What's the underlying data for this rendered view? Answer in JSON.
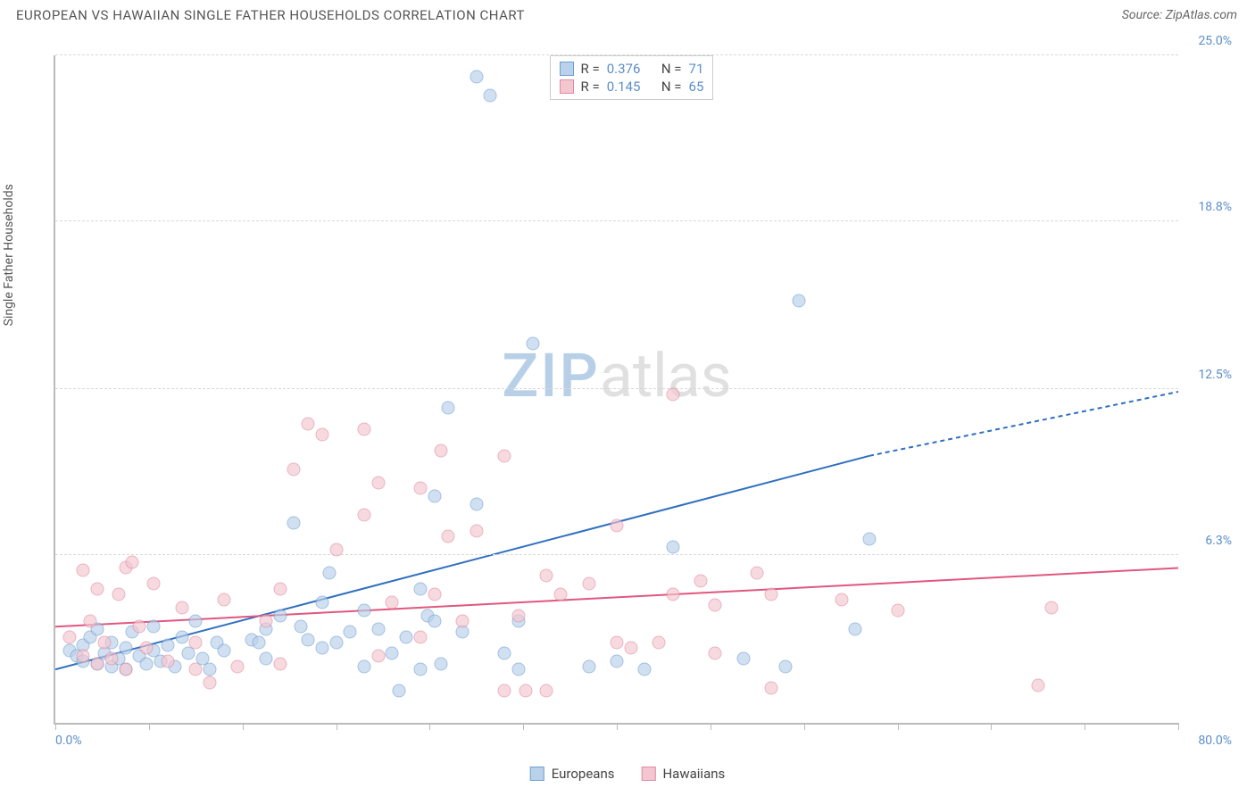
{
  "title": "EUROPEAN VS HAWAIIAN SINGLE FATHER HOUSEHOLDS CORRELATION CHART",
  "source_label": "Source:",
  "source_name": "ZipAtlas.com",
  "ylabel": "Single Father Households",
  "watermark_a": "ZIP",
  "watermark_b": "atlas",
  "chart": {
    "type": "scatter",
    "xlim": [
      0,
      80
    ],
    "ylim": [
      0,
      25
    ],
    "x_min_label": "0.0%",
    "x_max_label": "80.0%",
    "y_ticks": [
      6.3,
      12.5,
      18.8,
      25.0
    ],
    "y_tick_labels": [
      "6.3%",
      "12.5%",
      "18.8%",
      "25.0%"
    ],
    "x_tick_positions": [
      0,
      6.67,
      13.33,
      20,
      26.67,
      33.33,
      40,
      46.67,
      53.33,
      60,
      66.67,
      73.33,
      80
    ],
    "grid_color": "#d8d8d8",
    "axis_color": "#bbbbbb",
    "background_color": "#ffffff",
    "tick_label_color": "#5b8ecb",
    "series": [
      {
        "name": "Europeans",
        "fill": "#b9d1ea",
        "stroke": "#6f9fd2",
        "line_color": "#2f6fbf",
        "r": 0.376,
        "n": 71,
        "trend": {
          "x1": 0,
          "y1": 2.0,
          "x2_solid": 58,
          "y2_solid": 10.0,
          "x2_dash": 80,
          "y2_dash": 12.4
        },
        "points": [
          [
            1,
            2.7
          ],
          [
            1.5,
            2.5
          ],
          [
            2,
            2.9
          ],
          [
            2,
            2.3
          ],
          [
            2.5,
            3.2
          ],
          [
            3,
            2.2
          ],
          [
            3,
            3.5
          ],
          [
            3.5,
            2.6
          ],
          [
            4,
            2.1
          ],
          [
            4,
            3.0
          ],
          [
            4.5,
            2.4
          ],
          [
            5,
            2.8
          ],
          [
            5,
            2.0
          ],
          [
            5.5,
            3.4
          ],
          [
            6,
            2.5
          ],
          [
            6.5,
            2.2
          ],
          [
            7,
            2.7
          ],
          [
            7,
            3.6
          ],
          [
            7.5,
            2.3
          ],
          [
            8,
            2.9
          ],
          [
            8.5,
            2.1
          ],
          [
            9,
            3.2
          ],
          [
            9.5,
            2.6
          ],
          [
            10,
            3.8
          ],
          [
            10.5,
            2.4
          ],
          [
            11,
            2.0
          ],
          [
            11.5,
            3.0
          ],
          [
            12,
            2.7
          ],
          [
            14,
            3.1
          ],
          [
            14.5,
            3.0
          ],
          [
            15,
            3.5
          ],
          [
            15,
            2.4
          ],
          [
            16,
            4.0
          ],
          [
            17,
            7.5
          ],
          [
            17.5,
            3.6
          ],
          [
            18,
            3.1
          ],
          [
            19,
            2.8
          ],
          [
            19,
            4.5
          ],
          [
            19.5,
            5.6
          ],
          [
            20,
            3.0
          ],
          [
            21,
            3.4
          ],
          [
            22,
            2.1
          ],
          [
            22,
            4.2
          ],
          [
            23,
            3.5
          ],
          [
            24,
            2.6
          ],
          [
            24.5,
            1.2
          ],
          [
            25,
            3.2
          ],
          [
            26,
            2.0
          ],
          [
            26,
            5.0
          ],
          [
            26.5,
            4.0
          ],
          [
            27,
            3.8
          ],
          [
            27,
            8.5
          ],
          [
            27.5,
            2.2
          ],
          [
            28,
            11.8
          ],
          [
            29,
            3.4
          ],
          [
            30,
            8.2
          ],
          [
            30,
            24.2
          ],
          [
            31,
            23.5
          ],
          [
            32,
            2.6
          ],
          [
            33,
            2.0
          ],
          [
            33,
            3.8
          ],
          [
            34,
            14.2
          ],
          [
            38,
            2.1
          ],
          [
            40,
            2.3
          ],
          [
            42,
            2.0
          ],
          [
            44,
            6.6
          ],
          [
            49,
            2.4
          ],
          [
            52,
            2.1
          ],
          [
            53,
            15.8
          ],
          [
            57,
            3.5
          ],
          [
            58,
            6.9
          ]
        ]
      },
      {
        "name": "Hawaiians",
        "fill": "#f4c6d0",
        "stroke": "#df8ba2",
        "line_color": "#e0577f",
        "r": 0.145,
        "n": 65,
        "trend": {
          "x1": 0,
          "y1": 3.6,
          "x2_solid": 80,
          "y2_solid": 5.8,
          "x2_dash": 80,
          "y2_dash": 5.8
        },
        "points": [
          [
            1,
            3.2
          ],
          [
            2,
            5.7
          ],
          [
            2,
            2.5
          ],
          [
            2.5,
            3.8
          ],
          [
            3,
            2.2
          ],
          [
            3,
            5.0
          ],
          [
            3.5,
            3.0
          ],
          [
            4,
            2.4
          ],
          [
            4.5,
            4.8
          ],
          [
            5,
            5.8
          ],
          [
            5,
            2.0
          ],
          [
            5.5,
            6.0
          ],
          [
            6,
            3.6
          ],
          [
            6.5,
            2.8
          ],
          [
            7,
            5.2
          ],
          [
            8,
            2.3
          ],
          [
            9,
            4.3
          ],
          [
            10,
            3.0
          ],
          [
            10,
            2.0
          ],
          [
            11,
            1.5
          ],
          [
            12,
            4.6
          ],
          [
            13,
            2.1
          ],
          [
            15,
            3.8
          ],
          [
            16,
            5.0
          ],
          [
            16,
            2.2
          ],
          [
            17,
            9.5
          ],
          [
            18,
            11.2
          ],
          [
            19,
            10.8
          ],
          [
            20,
            6.5
          ],
          [
            22,
            11.0
          ],
          [
            22,
            7.8
          ],
          [
            23,
            2.5
          ],
          [
            23,
            9.0
          ],
          [
            24,
            4.5
          ],
          [
            26,
            8.8
          ],
          [
            26,
            3.2
          ],
          [
            27,
            4.8
          ],
          [
            27.5,
            10.2
          ],
          [
            28,
            7.0
          ],
          [
            29,
            3.8
          ],
          [
            30,
            7.2
          ],
          [
            32,
            10.0
          ],
          [
            32,
            1.2
          ],
          [
            33,
            4.0
          ],
          [
            33.5,
            1.2
          ],
          [
            35,
            5.5
          ],
          [
            35,
            1.2
          ],
          [
            36,
            4.8
          ],
          [
            38,
            5.2
          ],
          [
            40,
            3.0
          ],
          [
            40,
            7.4
          ],
          [
            41,
            2.8
          ],
          [
            43,
            3.0
          ],
          [
            44,
            4.8
          ],
          [
            44,
            12.3
          ],
          [
            46,
            5.3
          ],
          [
            47,
            4.4
          ],
          [
            47,
            2.6
          ],
          [
            50,
            5.6
          ],
          [
            51,
            4.8
          ],
          [
            51,
            1.3
          ],
          [
            56,
            4.6
          ],
          [
            60,
            4.2
          ],
          [
            70,
            1.4
          ],
          [
            71,
            4.3
          ]
        ]
      }
    ]
  },
  "legend": {
    "r_label": "R =",
    "n_label": "N ="
  },
  "bottom_legend": {
    "series1": "Europeans",
    "series2": "Hawaiians"
  }
}
